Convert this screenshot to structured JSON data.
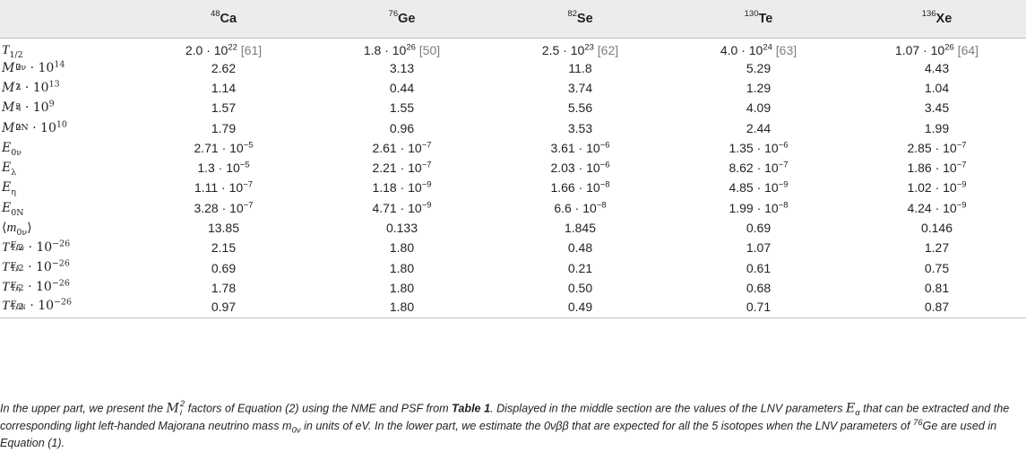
{
  "table": {
    "headers": [
      {
        "mass": "48",
        "el": "Ca"
      },
      {
        "mass": "76",
        "el": "Ge"
      },
      {
        "mass": "82",
        "el": "Se"
      },
      {
        "mass": "130",
        "el": "Te"
      },
      {
        "mass": "136",
        "el": "Xe"
      }
    ],
    "rows": [
      {
        "label": "T1/2",
        "cells": [
          {
            "v": "2.0 · 10",
            "e": "22",
            "r": "[61]"
          },
          {
            "v": "1.8 · 10",
            "e": "26",
            "r": "[50]"
          },
          {
            "v": "2.5 · 10",
            "e": "23",
            "r": "[62]"
          },
          {
            "v": "4.0 · 10",
            "e": "24",
            "r": "[63]"
          },
          {
            "v": "1.07 · 10",
            "e": "26",
            "r": "[64]"
          }
        ]
      },
      {
        "label": "M²0ν · 10¹⁴",
        "cells": [
          {
            "v": "2.62"
          },
          {
            "v": "3.13"
          },
          {
            "v": "11.8"
          },
          {
            "v": "5.29"
          },
          {
            "v": "4.43"
          }
        ]
      },
      {
        "label": "M²λ · 10¹³",
        "cells": [
          {
            "v": "1.14"
          },
          {
            "v": "0.44"
          },
          {
            "v": "3.74"
          },
          {
            "v": "1.29"
          },
          {
            "v": "1.04"
          }
        ]
      },
      {
        "label": "M²η · 10⁹",
        "cells": [
          {
            "v": "1.57"
          },
          {
            "v": "1.55"
          },
          {
            "v": "5.56"
          },
          {
            "v": "4.09"
          },
          {
            "v": "3.45"
          }
        ]
      },
      {
        "label": "M²0N · 10¹⁰",
        "cells": [
          {
            "v": "1.79"
          },
          {
            "v": "0.96"
          },
          {
            "v": "3.53"
          },
          {
            "v": "2.44"
          },
          {
            "v": "1.99"
          }
        ]
      },
      {
        "label": "E0ν",
        "cells": [
          {
            "v": "2.71 · 10",
            "e": "−5"
          },
          {
            "v": "2.61 · 10",
            "e": "−7"
          },
          {
            "v": "3.61 · 10",
            "e": "−6"
          },
          {
            "v": "1.35 · 10",
            "e": "−6"
          },
          {
            "v": "2.85 · 10",
            "e": "−7"
          }
        ]
      },
      {
        "label": "Eλ",
        "cells": [
          {
            "v": "1.3 · 10",
            "e": "−5"
          },
          {
            "v": "2.21 · 10",
            "e": "−7"
          },
          {
            "v": "2.03 · 10",
            "e": "−6"
          },
          {
            "v": "8.62 · 10",
            "e": "−7"
          },
          {
            "v": "1.86 · 10",
            "e": "−7"
          }
        ]
      },
      {
        "label": "Eη",
        "cells": [
          {
            "v": "1.11 · 10",
            "e": "−7"
          },
          {
            "v": "1.18 · 10",
            "e": "−9"
          },
          {
            "v": "1.66 · 10",
            "e": "−8"
          },
          {
            "v": "4.85 · 10",
            "e": "−9"
          },
          {
            "v": "1.02 · 10",
            "e": "−9"
          }
        ]
      },
      {
        "label": "E0N",
        "cells": [
          {
            "v": "3.28 · 10",
            "e": "−7"
          },
          {
            "v": "4.71 · 10",
            "e": "−9"
          },
          {
            "v": "6.6 · 10",
            "e": "−8"
          },
          {
            "v": "1.99 · 10",
            "e": "−8"
          },
          {
            "v": "4.24 · 10",
            "e": "−9"
          }
        ]
      },
      {
        "label": "⟨m0ν⟩",
        "cells": [
          {
            "v": "13.85"
          },
          {
            "v": "0.133"
          },
          {
            "v": "1.845"
          },
          {
            "v": "0.69"
          },
          {
            "v": "0.146"
          }
        ]
      },
      {
        "label": "T1/2^E0ν · 10⁻²⁶",
        "cells": [
          {
            "v": "2.15"
          },
          {
            "v": "1.80"
          },
          {
            "v": "0.48"
          },
          {
            "v": "1.07"
          },
          {
            "v": "1.27"
          }
        ]
      },
      {
        "label": "T1/2^Eλ · 10⁻²⁶",
        "cells": [
          {
            "v": "0.69"
          },
          {
            "v": "1.80"
          },
          {
            "v": "0.21"
          },
          {
            "v": "0.61"
          },
          {
            "v": "0.75"
          }
        ]
      },
      {
        "label": "T1/2^Eη · 10⁻²⁶",
        "cells": [
          {
            "v": "1.78"
          },
          {
            "v": "1.80"
          },
          {
            "v": "0.50"
          },
          {
            "v": "0.68"
          },
          {
            "v": "0.81"
          }
        ]
      },
      {
        "label": "T1/2^E0N · 10⁻²⁶",
        "cells": [
          {
            "v": "0.97"
          },
          {
            "v": "1.80"
          },
          {
            "v": "0.49"
          },
          {
            "v": "0.71"
          },
          {
            "v": "0.87"
          }
        ]
      }
    ]
  },
  "caption": {
    "p1": "In the upper part, we present the ",
    "p1_sym": "M",
    "p1_sub": "i",
    "p1_sup": "2",
    "p2": " factors of Equation (2) using the NME and PSF from ",
    "p2_bold": "Table 1",
    "p3": ". Displayed in the middle section are the values of the LNV parameters ",
    "p3_sym": "E",
    "p3_sub": "α",
    "p4": " that can be extracted and the corresponding light left-handed Majorana neutrino mass m",
    "p4_sub": "0ν",
    "p5": " in units of eV. In the lower part, we estimate the 0νββ that are expected for all the 5 isotopes when the LNV parameters of ",
    "p5_sup": "76",
    "p6": "Ge are used in Equation (1)."
  }
}
